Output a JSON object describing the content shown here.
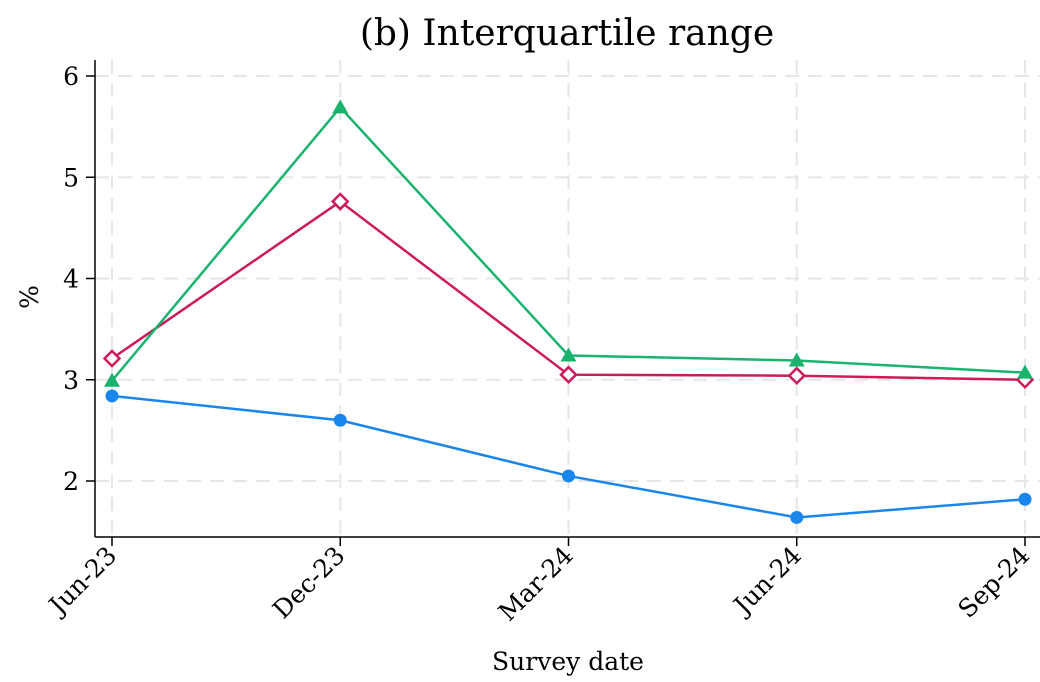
{
  "chart_data": {
    "type": "line",
    "title": "(b) Interquartile range",
    "xlabel": "Survey date",
    "ylabel": "%",
    "categories": [
      "Jun-23",
      "Dec-23",
      "Mar-24",
      "Jun-24",
      "Sep-24"
    ],
    "ylim": [
      1.45,
      6.15
    ],
    "yticks": [
      2,
      3,
      4,
      5,
      6
    ],
    "grid": true,
    "legend": "none",
    "series": [
      {
        "color": "#1a85ea",
        "marker": "circle",
        "values": [
          2.84,
          2.6,
          2.05,
          1.64,
          1.82
        ]
      },
      {
        "color": "#cc1a5c",
        "marker": "diamond-hollow",
        "values": [
          3.21,
          4.76,
          3.05,
          3.04,
          3.0
        ]
      },
      {
        "color": "#19b36e",
        "marker": "triangle",
        "values": [
          2.99,
          5.69,
          3.24,
          3.19,
          3.07
        ]
      }
    ]
  }
}
